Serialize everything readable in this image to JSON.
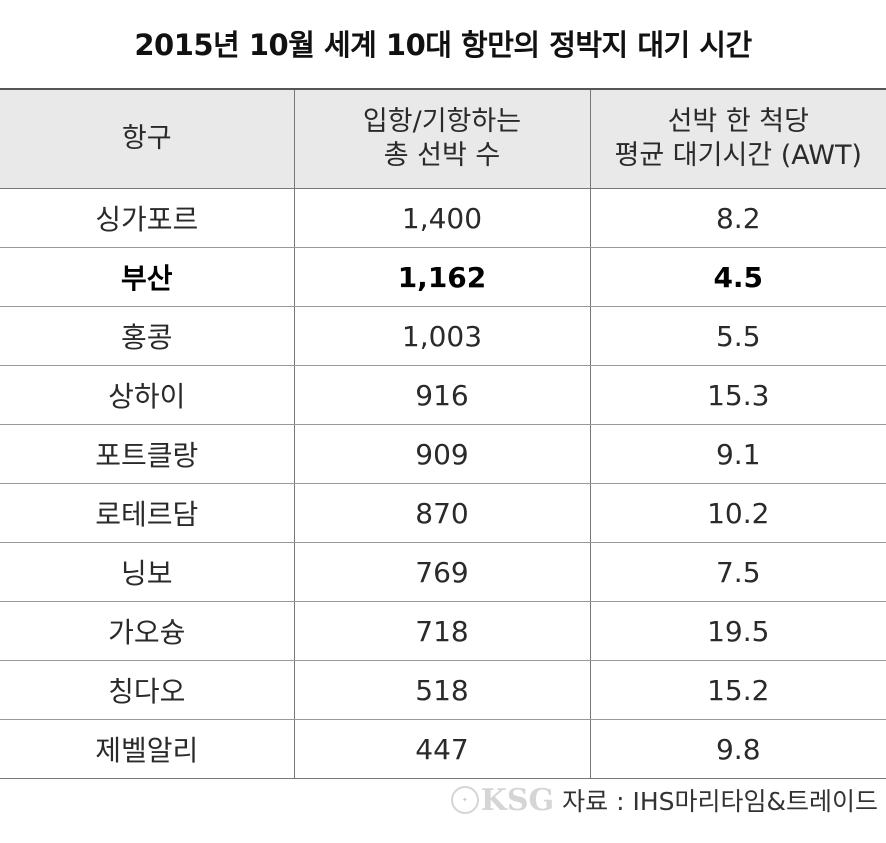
{
  "title": "2015년 10월 세계 10대 항만의 정박지 대기 시간",
  "table": {
    "headers": [
      {
        "line1": "항구",
        "line2": ""
      },
      {
        "line1": "입항/기항하는",
        "line2": "총 선박 수"
      },
      {
        "line1": "선박 한 척당",
        "line2": "평균 대기시간 (AWT)"
      }
    ],
    "rows": [
      {
        "port": "싱가포르",
        "ships": "1,400",
        "awt": "8.2"
      },
      {
        "port": "부산",
        "ships": "1,162",
        "awt": "4.5"
      },
      {
        "port": "홍콩",
        "ships": "1,003",
        "awt": "5.5"
      },
      {
        "port": "상하이",
        "ships": "916",
        "awt": "15.3"
      },
      {
        "port": "포트클랑",
        "ships": "909",
        "awt": "9.1"
      },
      {
        "port": "로테르담",
        "ships": "870",
        "awt": "10.2"
      },
      {
        "port": "닝보",
        "ships": "769",
        "awt": "7.5"
      },
      {
        "port": "가오슝",
        "ships": "718",
        "awt": "19.5"
      },
      {
        "port": "칭다오",
        "ships": "518",
        "awt": "15.2"
      },
      {
        "port": "제벨알리",
        "ships": "447",
        "awt": "9.8"
      }
    ]
  },
  "source": {
    "logo_text": "KSG",
    "text": "자료 : IHS마리타임&트레이드"
  }
}
